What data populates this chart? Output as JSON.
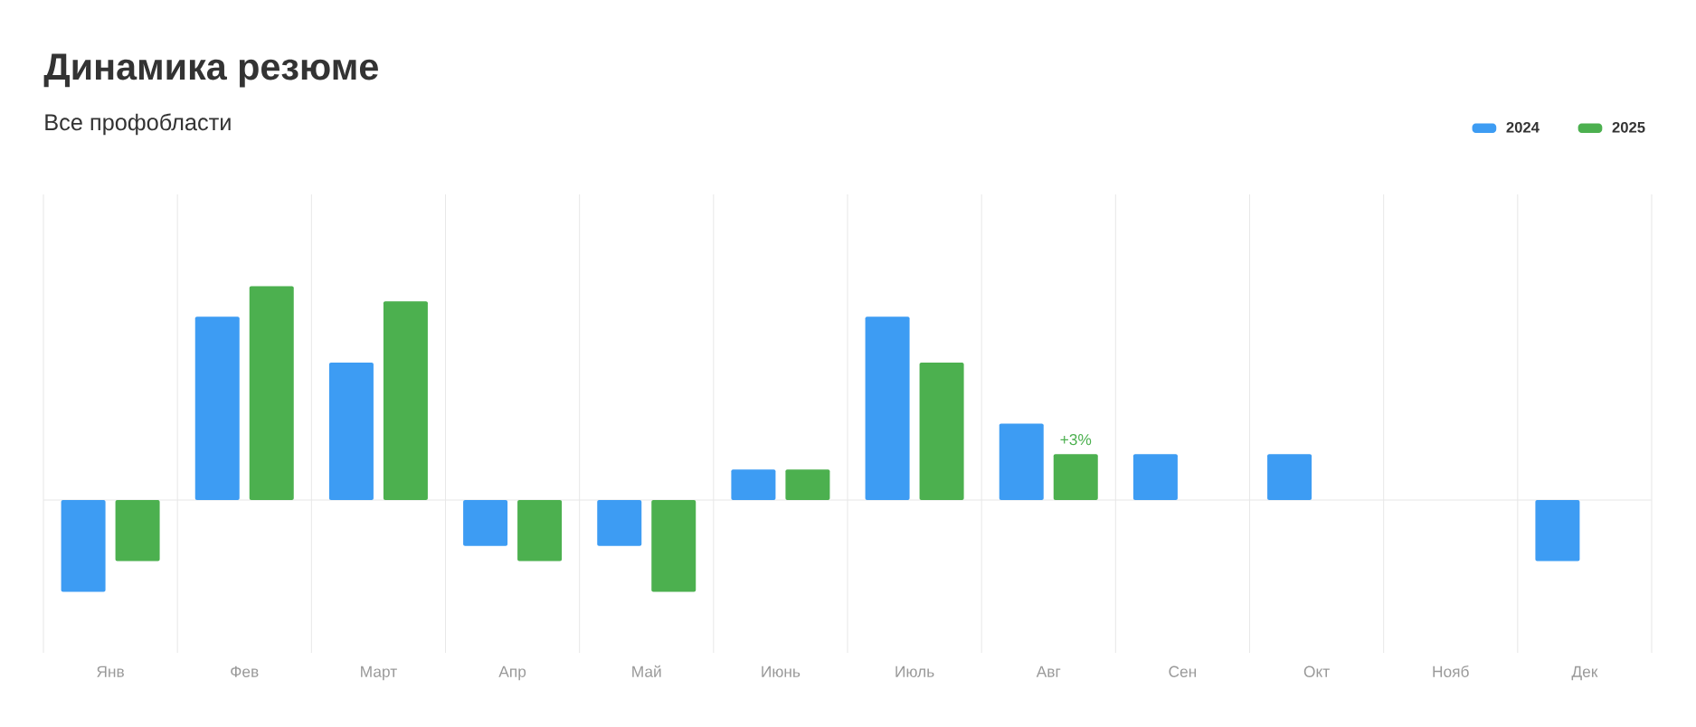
{
  "chart_data": {
    "type": "bar",
    "title": "Динамика резюме",
    "subtitle": "Все профобласти",
    "categories": [
      "Янв",
      "Фев",
      "Март",
      "Апр",
      "Май",
      "Июнь",
      "Июль",
      "Авг",
      "Сен",
      "Окт",
      "Нояб",
      "Дек"
    ],
    "series": [
      {
        "name": "2024",
        "color": "#3d9cf3",
        "values": [
          -6,
          12,
          9,
          -3,
          -3,
          2,
          12,
          5,
          3,
          3,
          null,
          -4
        ]
      },
      {
        "name": "2025",
        "color": "#4cb04f",
        "values": [
          -4,
          14,
          13,
          -4,
          -6,
          2,
          9,
          3,
          null,
          null,
          null,
          null
        ],
        "value_labels": [
          null,
          null,
          null,
          null,
          null,
          null,
          null,
          "+3%",
          null,
          null,
          null,
          null
        ]
      }
    ],
    "ylim": [
      -10,
      20
    ],
    "tick_labels": "x",
    "grid": "x",
    "legend": "top right"
  }
}
